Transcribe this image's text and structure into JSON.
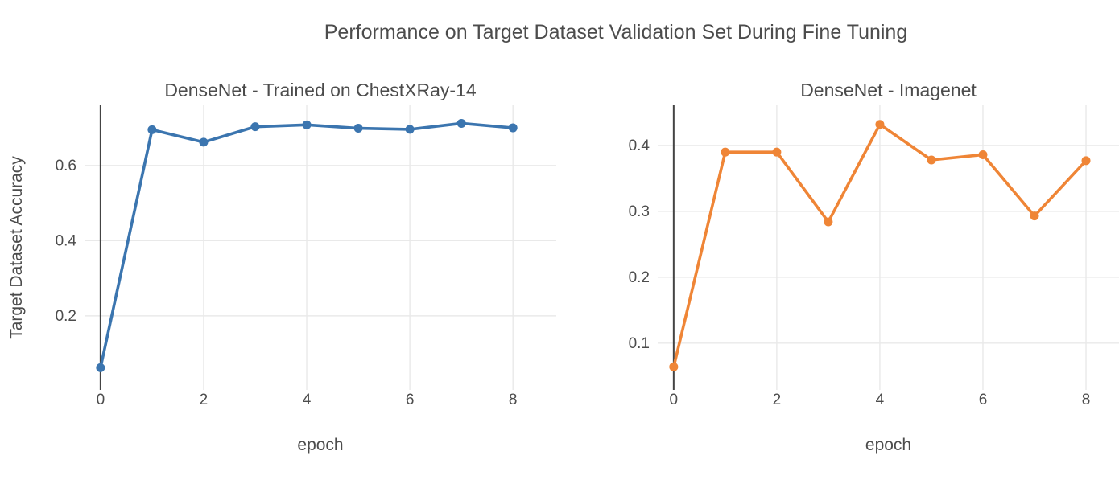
{
  "figure": {
    "title": "Performance on Target Dataset Validation Set During Fine Tuning"
  },
  "colors": {
    "blue": "#3b75af",
    "orange": "#ef8536",
    "grid": "#e9e9e9",
    "zeroline": "#444444",
    "text": "#4c4c4c"
  },
  "chart_data": [
    {
      "type": "line",
      "title": "DenseNet - Trained on ChestXRay-14",
      "xlabel": "epoch",
      "ylabel": "Target Dataset Accuracy",
      "x": [
        0,
        1,
        2,
        3,
        4,
        5,
        6,
        7,
        8
      ],
      "series": [
        {
          "name": "DenseNet - Trained on ChestXRay-14",
          "color_key": "blue",
          "values": [
            0.062,
            0.695,
            0.662,
            0.703,
            0.708,
            0.699,
            0.696,
            0.712,
            0.7
          ]
        }
      ],
      "xticks": [
        0,
        2,
        4,
        6,
        8
      ],
      "yticks": [
        0.2,
        0.4,
        0.6
      ],
      "xlim": [
        -0.31,
        8.84
      ],
      "ylim": [
        0.003,
        0.76
      ],
      "grid": true,
      "zeroline_x": 0,
      "legend": "none"
    },
    {
      "type": "line",
      "title": "DenseNet - Imagenet",
      "xlabel": "epoch",
      "ylabel": "",
      "x": [
        0,
        1,
        2,
        3,
        4,
        5,
        6,
        7,
        8
      ],
      "series": [
        {
          "name": "DenseNet - Imagenet",
          "color_key": "orange",
          "values": [
            0.064,
            0.39,
            0.39,
            0.284,
            0.432,
            0.378,
            0.386,
            0.293,
            0.377
          ]
        }
      ],
      "xticks": [
        0,
        2,
        4,
        6,
        8
      ],
      "yticks": [
        0.1,
        0.2,
        0.3,
        0.4
      ],
      "xlim": [
        -0.31,
        8.64
      ],
      "ylim": [
        0.029,
        0.461
      ],
      "grid": true,
      "zeroline_x": 0,
      "legend": "none"
    }
  ]
}
